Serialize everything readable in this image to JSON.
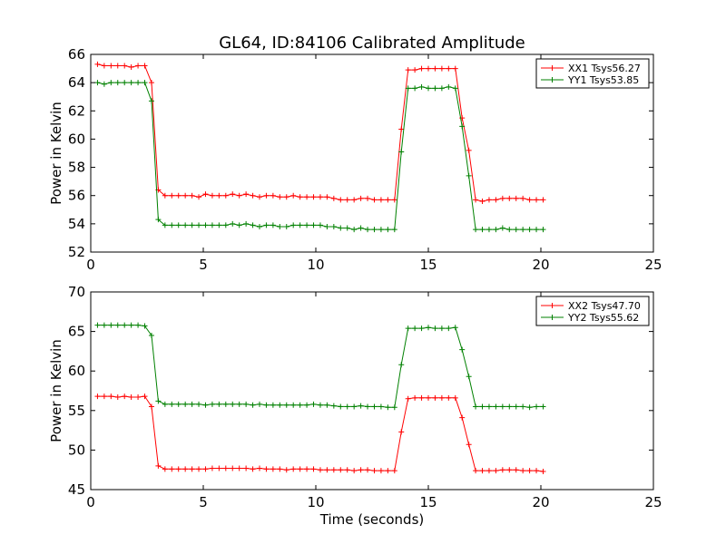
{
  "figure_title": "GL64, ID:84106 Calibrated Amplitude",
  "chart_data": [
    {
      "type": "line",
      "title": "GL64, ID:84106 Calibrated Amplitude",
      "xlabel": "",
      "ylabel": "Power in Kelvin",
      "xlim": [
        0,
        25
      ],
      "ylim": [
        52,
        66
      ],
      "xticks": [
        "0",
        "5",
        "10",
        "15",
        "20",
        "25"
      ],
      "yticks": [
        "52",
        "54",
        "56",
        "58",
        "60",
        "62",
        "64",
        "66"
      ],
      "grid": false,
      "legend": "top-right",
      "x": [
        0.3,
        0.6,
        0.9,
        1.2,
        1.5,
        1.8,
        2.1,
        2.4,
        2.7,
        3.0,
        3.3,
        3.6,
        3.9,
        4.2,
        4.5,
        4.8,
        5.1,
        5.4,
        5.7,
        6.0,
        6.3,
        6.6,
        6.9,
        7.2,
        7.5,
        7.8,
        8.1,
        8.4,
        8.7,
        9.0,
        9.3,
        9.6,
        9.9,
        10.2,
        10.5,
        10.8,
        11.1,
        11.4,
        11.7,
        12.0,
        12.3,
        12.6,
        12.9,
        13.2,
        13.5,
        13.8,
        14.1,
        14.4,
        14.7,
        15.0,
        15.3,
        15.6,
        15.9,
        16.2,
        16.5,
        16.8,
        17.1,
        17.4,
        17.7,
        18.0,
        18.3,
        18.6,
        18.9,
        19.2,
        19.5,
        19.8,
        20.1
      ],
      "series": [
        {
          "name": "XX1 Tsys56.27",
          "color": "#ff0000",
          "values": [
            65.3,
            65.2,
            65.2,
            65.2,
            65.2,
            65.1,
            65.2,
            65.2,
            64.0,
            56.4,
            56.0,
            56.0,
            56.0,
            56.0,
            56.0,
            55.9,
            56.1,
            56.0,
            56.0,
            56.0,
            56.1,
            56.0,
            56.1,
            56.0,
            55.9,
            56.0,
            56.0,
            55.9,
            55.9,
            56.0,
            55.9,
            55.9,
            55.9,
            55.9,
            55.9,
            55.8,
            55.7,
            55.7,
            55.7,
            55.8,
            55.8,
            55.7,
            55.7,
            55.7,
            55.7,
            60.7,
            64.9,
            64.9,
            65.0,
            65.0,
            65.0,
            65.0,
            65.0,
            65.0,
            61.5,
            59.2,
            55.7,
            55.6,
            55.7,
            55.7,
            55.8,
            55.8,
            55.8,
            55.8,
            55.7,
            55.7,
            55.7
          ]
        },
        {
          "name": "YY1 Tsys53.85",
          "color": "#008000",
          "values": [
            64.0,
            63.9,
            64.0,
            64.0,
            64.0,
            64.0,
            64.0,
            64.0,
            62.7,
            54.3,
            53.9,
            53.9,
            53.9,
            53.9,
            53.9,
            53.9,
            53.9,
            53.9,
            53.9,
            53.9,
            54.0,
            53.9,
            54.0,
            53.9,
            53.8,
            53.9,
            53.9,
            53.8,
            53.8,
            53.9,
            53.9,
            53.9,
            53.9,
            53.9,
            53.8,
            53.8,
            53.7,
            53.7,
            53.6,
            53.7,
            53.6,
            53.6,
            53.6,
            53.6,
            53.6,
            59.1,
            63.6,
            63.6,
            63.7,
            63.6,
            63.6,
            63.6,
            63.7,
            63.6,
            60.9,
            57.4,
            53.6,
            53.6,
            53.6,
            53.6,
            53.7,
            53.6,
            53.6,
            53.6,
            53.6,
            53.6,
            53.6
          ]
        }
      ]
    },
    {
      "type": "line",
      "title": "",
      "xlabel": "Time (seconds)",
      "ylabel": "Power in Kelvin",
      "xlim": [
        0,
        25
      ],
      "ylim": [
        45,
        70
      ],
      "xticks": [
        "0",
        "5",
        "10",
        "15",
        "20",
        "25"
      ],
      "yticks": [
        "45",
        "50",
        "55",
        "60",
        "65",
        "70"
      ],
      "grid": false,
      "legend": "top-right",
      "x": [
        0.3,
        0.6,
        0.9,
        1.2,
        1.5,
        1.8,
        2.1,
        2.4,
        2.7,
        3.0,
        3.3,
        3.6,
        3.9,
        4.2,
        4.5,
        4.8,
        5.1,
        5.4,
        5.7,
        6.0,
        6.3,
        6.6,
        6.9,
        7.2,
        7.5,
        7.8,
        8.1,
        8.4,
        8.7,
        9.0,
        9.3,
        9.6,
        9.9,
        10.2,
        10.5,
        10.8,
        11.1,
        11.4,
        11.7,
        12.0,
        12.3,
        12.6,
        12.9,
        13.2,
        13.5,
        13.8,
        14.1,
        14.4,
        14.7,
        15.0,
        15.3,
        15.6,
        15.9,
        16.2,
        16.5,
        16.8,
        17.1,
        17.4,
        17.7,
        18.0,
        18.3,
        18.6,
        18.9,
        19.2,
        19.5,
        19.8,
        20.1
      ],
      "series": [
        {
          "name": "XX2 Tsys47.70",
          "color": "#ff0000",
          "values": [
            56.8,
            56.8,
            56.8,
            56.7,
            56.8,
            56.7,
            56.7,
            56.8,
            55.5,
            48.0,
            47.6,
            47.6,
            47.6,
            47.6,
            47.6,
            47.6,
            47.6,
            47.7,
            47.7,
            47.7,
            47.7,
            47.7,
            47.7,
            47.6,
            47.7,
            47.6,
            47.6,
            47.6,
            47.5,
            47.6,
            47.6,
            47.6,
            47.6,
            47.5,
            47.5,
            47.5,
            47.5,
            47.5,
            47.4,
            47.5,
            47.5,
            47.4,
            47.4,
            47.4,
            47.4,
            52.3,
            56.5,
            56.6,
            56.6,
            56.6,
            56.6,
            56.6,
            56.6,
            56.6,
            54.1,
            50.7,
            47.4,
            47.4,
            47.4,
            47.4,
            47.5,
            47.5,
            47.5,
            47.4,
            47.4,
            47.4,
            47.3
          ]
        },
        {
          "name": "YY2 Tsys55.62",
          "color": "#008000",
          "values": [
            65.8,
            65.8,
            65.8,
            65.8,
            65.8,
            65.8,
            65.8,
            65.7,
            64.5,
            56.2,
            55.8,
            55.8,
            55.8,
            55.8,
            55.8,
            55.8,
            55.7,
            55.8,
            55.8,
            55.8,
            55.8,
            55.8,
            55.8,
            55.7,
            55.8,
            55.7,
            55.7,
            55.7,
            55.7,
            55.7,
            55.7,
            55.7,
            55.8,
            55.7,
            55.7,
            55.6,
            55.5,
            55.5,
            55.5,
            55.6,
            55.5,
            55.5,
            55.5,
            55.4,
            55.4,
            60.8,
            65.4,
            65.4,
            65.4,
            65.5,
            65.4,
            65.4,
            65.4,
            65.5,
            62.7,
            59.3,
            55.5,
            55.5,
            55.5,
            55.5,
            55.5,
            55.5,
            55.5,
            55.5,
            55.4,
            55.5,
            55.5
          ]
        }
      ]
    }
  ]
}
